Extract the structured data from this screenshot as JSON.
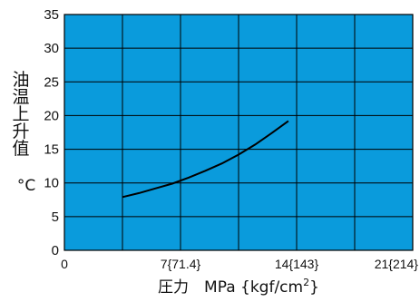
{
  "chart_data": {
    "type": "line",
    "title": "",
    "xlabel": "圧力　MPa {kgf/cm²}",
    "xlabel_parts": {
      "main": "圧力　MPa {kgf/cm",
      "sup": "2",
      "tail": "}"
    },
    "ylabel": "油温上升值",
    "ylabel_chars": [
      "油",
      "温",
      "上",
      "升",
      "值"
    ],
    "yunit": "°C",
    "xlim": [
      0,
      21
    ],
    "ylim": [
      0,
      35
    ],
    "x_ticks": [
      {
        "value": 0,
        "label": "0"
      },
      {
        "value": 7,
        "label": "7{71.4}"
      },
      {
        "value": 14,
        "label": "14{143}"
      },
      {
        "value": 21,
        "label": "21{214}"
      }
    ],
    "y_ticks": [
      0,
      5,
      10,
      15,
      20,
      25,
      30,
      35
    ],
    "x_grid_step": 3.5,
    "y_grid_step": 5,
    "grid": true,
    "series": [
      {
        "x": [
          3.5,
          4.5,
          5.5,
          6.5,
          7.5,
          8.5,
          9.5,
          10.5,
          11.5,
          12.5,
          13.5
        ],
        "values": [
          7.9,
          8.5,
          9.2,
          9.9,
          10.8,
          11.8,
          12.9,
          14.2,
          15.7,
          17.4,
          19.2
        ]
      }
    ],
    "colors": {
      "plot_bg": "#0a9bdc",
      "grid": "#000000",
      "line": "#000000"
    }
  }
}
